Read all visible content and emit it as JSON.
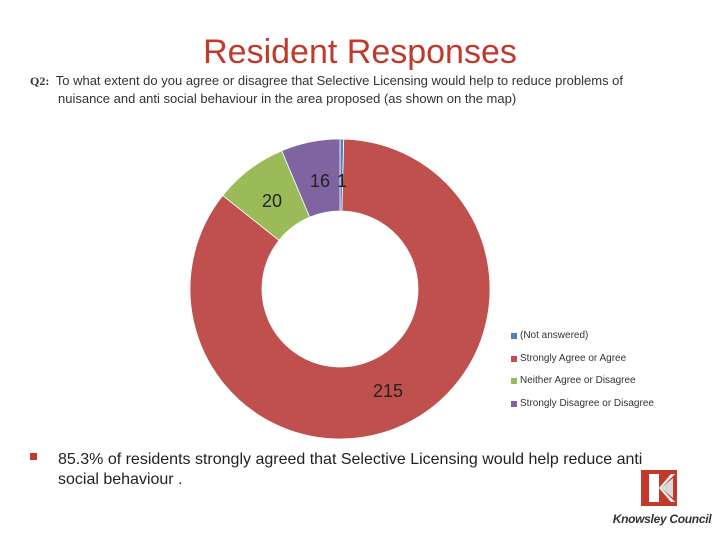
{
  "slide": {
    "title": "Resident Responses",
    "question_label": "Q2:",
    "question_line1": "To what extent do you agree or disagree that Selective Licensing would help to reduce problems of",
    "question_line2": "nuisance and anti social behaviour in the area proposed (as shown on the map)",
    "bullet_text": "85.3% of residents strongly agreed that Selective Licensing would help reduce anti social behaviour .",
    "logo_text": "Knowsley Council"
  },
  "chart_data": {
    "type": "pie",
    "style": "doughnut",
    "title": "",
    "categories": [
      "(Not answered)",
      "Strongly Agree or Agree",
      "Neither Agree or Disagree",
      "Strongly Disagree or Disagree"
    ],
    "values": [
      1,
      215,
      20,
      16
    ],
    "data_labels": [
      "1",
      "215",
      "20",
      "16"
    ],
    "colors": [
      "#4f81bd",
      "#c0504d",
      "#9bbb59",
      "#8064a2"
    ],
    "legend_position": "right"
  }
}
